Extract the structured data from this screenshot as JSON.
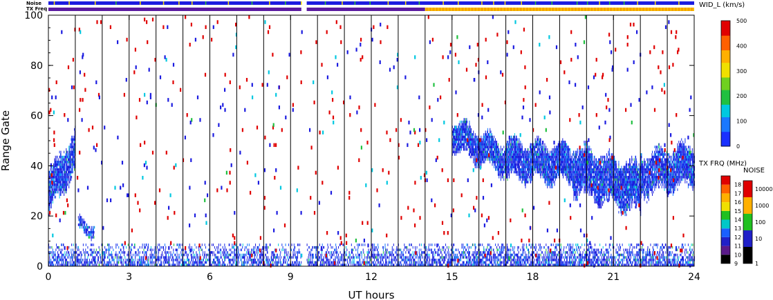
{
  "chart_data": {
    "type": "heatmap",
    "xlabel": "UT hours",
    "ylabel": "Range Gate",
    "xlim": [
      0,
      24
    ],
    "ylim": [
      0,
      100
    ],
    "x_ticks": [
      "0",
      "3",
      "6",
      "9",
      "12",
      "15",
      "18",
      "21",
      "24"
    ],
    "y_ticks": [
      "0",
      "20",
      "40",
      "60",
      "80",
      "100"
    ],
    "scan_boundary_hours": [
      1,
      2,
      3,
      4,
      5,
      6,
      7,
      8,
      9,
      10,
      11,
      12,
      13,
      14,
      15,
      16,
      17,
      18,
      19,
      20,
      21,
      22,
      23
    ],
    "data_gap_hours": [
      9.4,
      9.6
    ],
    "status_bars": {
      "noise_label": "Noise",
      "txfreq_label": "TX Freq",
      "txfreq_change_hour": 14.0,
      "colors": {
        "blue": "#1c1ce0",
        "purple": "#5a1aa0",
        "orange": "#f5a000",
        "yellow": "#f5dc00",
        "green": "#30c030"
      }
    },
    "colorbars": {
      "width": {
        "title": "WID_L (km/s)",
        "ticks": [
          "0",
          "100",
          "200",
          "300",
          "400",
          "500"
        ],
        "range": [
          0,
          500
        ]
      },
      "txfreq": {
        "title": "TX FRQ (MHz)",
        "ticks": [
          "9",
          "10",
          "11",
          "12",
          "13",
          "14",
          "15",
          "16",
          "17",
          "18"
        ],
        "colors": [
          "#000000",
          "#5a1a8a",
          "#2020c8",
          "#1a60ff",
          "#00c8c8",
          "#20c020",
          "#f0e000",
          "#ffb000",
          "#ff6000",
          "#e00000"
        ]
      },
      "noise": {
        "title": "NOISE",
        "ticks": [
          "1",
          "10",
          "100",
          "1000",
          "10000"
        ],
        "colors": [
          "#000000",
          "#2020c8",
          "#20c020",
          "#ffb000",
          "#e00000"
        ]
      }
    },
    "series": [
      {
        "description_key": "echo_bands",
        "bands": [
          {
            "x": [
              0.0,
              1.0
            ],
            "center": [
              28,
              46
            ],
            "halfwidth": 7,
            "density": 0.75
          },
          {
            "x": [
              1.1,
              1.7
            ],
            "center": [
              15,
              15
            ],
            "halfwidth": 1.5,
            "density": 0.7
          },
          {
            "x": [
              15.0,
              17.0
            ],
            "center": [
              52,
              42
            ],
            "halfwidth": 5,
            "density": 0.8
          },
          {
            "x": [
              17.0,
              19.5
            ],
            "center": [
              42,
              40
            ],
            "halfwidth": 6,
            "density": 0.8
          },
          {
            "x": [
              19.5,
              22.0
            ],
            "center": [
              38,
              30
            ],
            "halfwidth": 8,
            "density": 0.8
          },
          {
            "x": [
              22.0,
              24.0
            ],
            "center": [
              36,
              40
            ],
            "halfwidth": 7,
            "density": 0.75
          }
        ],
        "ground_scatter": {
          "range_gates": [
            0,
            8
          ],
          "density_before_14": 0.45,
          "density_after_14": 0.55
        }
      }
    ]
  }
}
